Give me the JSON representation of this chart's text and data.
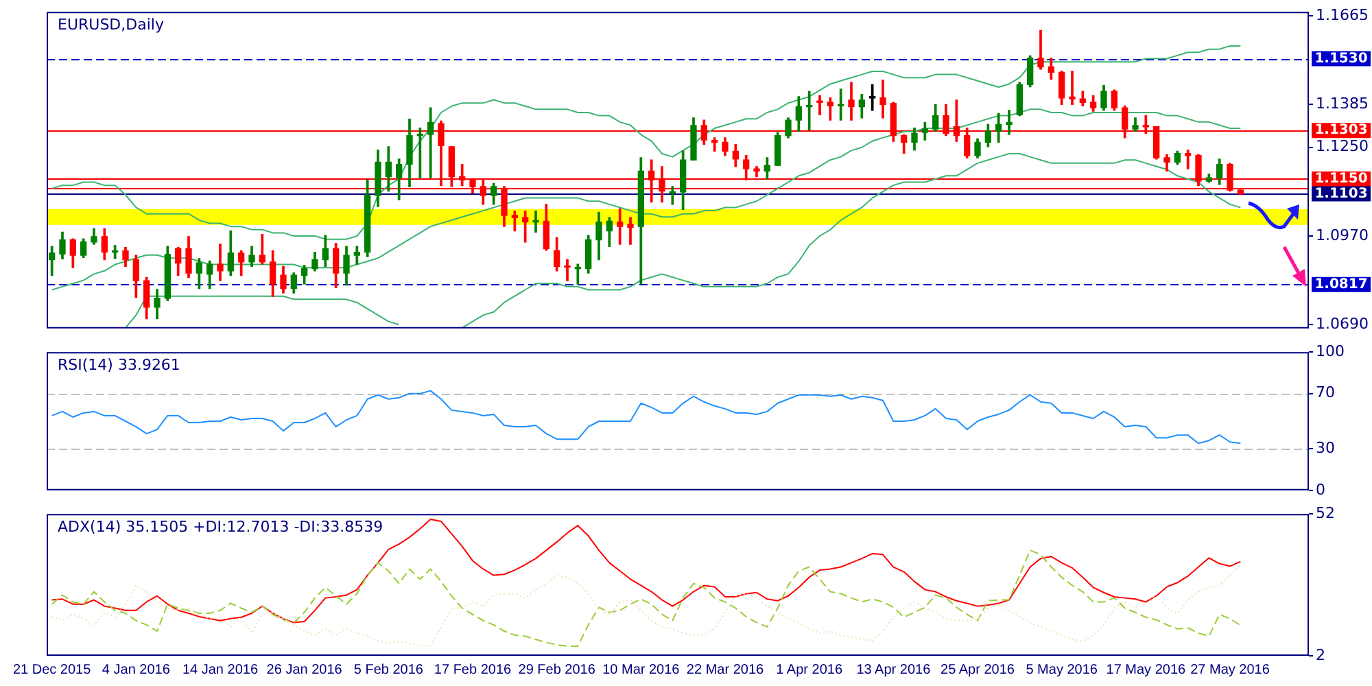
{
  "chart_data": [
    {
      "type": "candlestick",
      "title": "EURUSD,Daily",
      "tick_labels": "y",
      "categories": [
        null,
        null,
        null,
        null,
        null,
        null,
        null,
        null,
        null,
        null,
        null,
        null,
        null,
        null,
        null,
        null,
        null,
        null,
        null,
        null,
        null,
        null,
        null,
        null,
        null,
        null,
        null,
        null,
        null,
        null,
        null,
        null,
        null,
        null,
        null,
        null,
        null,
        null,
        null,
        null,
        null,
        null,
        null,
        null,
        null,
        null,
        null,
        null,
        null,
        null,
        null,
        null,
        null,
        null,
        null,
        null,
        null,
        null,
        null,
        null,
        null,
        null,
        null,
        null,
        null,
        null,
        null,
        null,
        null,
        null,
        null,
        null,
        null,
        null,
        null,
        null,
        null,
        null,
        null,
        null,
        null,
        null,
        null,
        null,
        null,
        null,
        null,
        null,
        null,
        null,
        null,
        null,
        null,
        null,
        null,
        null,
        null,
        null,
        null,
        null,
        null,
        null,
        null,
        null,
        null,
        null,
        null,
        null,
        null,
        null,
        null,
        null,
        null,
        null,
        null,
        null,
        null,
        null,
        null,
        null
      ],
      "ohlc": [
        [
          1.0895,
          1.0937,
          1.0846,
          1.0916
        ],
        [
          1.0913,
          1.0982,
          1.0898,
          1.0958
        ],
        [
          1.0958,
          1.0961,
          1.087,
          1.0909
        ],
        [
          1.0909,
          1.0961,
          1.0902,
          1.0951
        ],
        [
          1.0951,
          1.0993,
          1.0944,
          1.0968
        ],
        [
          1.0968,
          1.0993,
          1.0895,
          1.0919
        ],
        [
          1.0919,
          1.094,
          1.0899,
          1.0923
        ],
        [
          1.0923,
          1.0934,
          1.0874,
          1.0895
        ],
        [
          1.0895,
          1.0909,
          1.0776,
          1.0829
        ],
        [
          1.0829,
          1.0839,
          1.0709,
          1.0745
        ],
        [
          1.0745,
          1.0801,
          1.0709,
          1.0773
        ],
        [
          1.0773,
          1.0937,
          1.0766,
          1.0912
        ],
        [
          1.093,
          1.0934,
          1.0846,
          1.0884
        ],
        [
          1.093,
          1.0968,
          1.0839,
          1.0853
        ],
        [
          1.0853,
          1.0899,
          1.0804,
          1.0885
        ],
        [
          1.0849,
          1.0891,
          1.0804,
          1.0881
        ],
        [
          1.0881,
          1.0944,
          1.0829,
          1.086
        ],
        [
          1.086,
          1.0986,
          1.0846,
          1.0916
        ],
        [
          1.0916,
          1.0923,
          1.0846,
          1.0888
        ],
        [
          1.0888,
          1.0937,
          1.0874,
          1.0909
        ],
        [
          1.0909,
          1.0975,
          1.0881,
          1.0888
        ],
        [
          1.0888,
          1.0923,
          1.0779,
          1.0818
        ],
        [
          1.0846,
          1.0874,
          1.079,
          1.0804
        ],
        [
          1.0804,
          1.0853,
          1.079,
          1.0846
        ],
        [
          1.0846,
          1.0877,
          1.0818,
          1.0867
        ],
        [
          1.0867,
          1.0919,
          1.086,
          1.0895
        ],
        [
          1.0895,
          1.0972,
          1.0874,
          1.093
        ],
        [
          1.093,
          1.0947,
          1.0807,
          1.0853
        ],
        [
          1.0853,
          1.0937,
          1.0815,
          1.0909
        ],
        [
          1.0909,
          1.0937,
          1.0881,
          1.0919
        ],
        [
          1.0919,
          1.1147,
          1.0905,
          1.1098
        ],
        [
          1.1098,
          1.1241,
          1.1063,
          1.1203
        ],
        [
          1.1157,
          1.1252,
          1.1112,
          1.1203
        ],
        [
          1.1154,
          1.1213,
          1.1084,
          1.1196
        ],
        [
          1.1196,
          1.1339,
          1.1126,
          1.1287
        ],
        [
          1.1287,
          1.1311,
          1.1154,
          1.1291
        ],
        [
          1.1291,
          1.1375,
          1.1154,
          1.1329
        ],
        [
          1.1325,
          1.1333,
          1.1129,
          1.1255
        ],
        [
          1.1252,
          1.1252,
          1.1126,
          1.1157
        ],
        [
          1.1157,
          1.1196,
          1.1129,
          1.1147
        ],
        [
          1.1147,
          1.115,
          1.1105,
          1.1126
        ],
        [
          1.1126,
          1.115,
          1.107,
          1.1098
        ],
        [
          1.1098,
          1.1136,
          1.107,
          1.1126
        ],
        [
          1.1119,
          1.1126,
          1.1,
          1.1035
        ],
        [
          1.1035,
          1.1049,
          1.0986,
          1.1028
        ],
        [
          1.1028,
          1.1049,
          1.0951,
          1.1014
        ],
        [
          1.1014,
          1.1049,
          1.0982,
          1.1017
        ],
        [
          1.1017,
          1.107,
          1.0925,
          1.093
        ],
        [
          1.0923,
          1.0965,
          1.086,
          1.0874
        ],
        [
          1.0874,
          1.0895,
          1.0829,
          1.0871
        ],
        [
          1.0867,
          1.0881,
          1.0818,
          1.087
        ],
        [
          1.0867,
          1.0972,
          1.0853,
          1.0958
        ],
        [
          1.0958,
          1.1045,
          1.0895,
          1.1014
        ],
        [
          1.0986,
          1.1028,
          1.0937,
          1.1017
        ],
        [
          1.1014,
          1.1056,
          1.0944,
          1.1
        ],
        [
          1.1007,
          1.1028,
          1.0944,
          1.0997
        ],
        [
          1.1,
          1.1217,
          1.0818,
          1.1175
        ],
        [
          1.1175,
          1.121,
          1.1077,
          1.1147
        ],
        [
          1.1147,
          1.1189,
          1.1077,
          1.1112
        ],
        [
          1.1105,
          1.1126,
          1.107,
          1.1109
        ],
        [
          1.1109,
          1.1238,
          1.1053,
          1.121
        ],
        [
          1.121,
          1.1343,
          1.121,
          1.1319
        ],
        [
          1.1319,
          1.1336,
          1.1259,
          1.1273
        ],
        [
          1.1272,
          1.128,
          1.1238,
          1.1266
        ],
        [
          1.1266,
          1.128,
          1.1224,
          1.1238
        ],
        [
          1.1238,
          1.1259,
          1.1189,
          1.1213
        ],
        [
          1.121,
          1.1224,
          1.1147,
          1.1182
        ],
        [
          1.1182,
          1.1189,
          1.1157,
          1.1175
        ],
        [
          1.1175,
          1.1217,
          1.115,
          1.1193
        ],
        [
          1.1193,
          1.1297,
          1.1193,
          1.1287
        ],
        [
          1.1287,
          1.1343,
          1.128,
          1.1336
        ],
        [
          1.1336,
          1.141,
          1.1301,
          1.1378
        ],
        [
          1.1378,
          1.1427,
          1.1305,
          1.1381
        ],
        [
          1.1395,
          1.1413,
          1.1353,
          1.1392
        ],
        [
          1.1392,
          1.1406,
          1.1336,
          1.1381
        ],
        [
          1.1381,
          1.1434,
          1.1336,
          1.1385
        ],
        [
          1.1399,
          1.1455,
          1.1336,
          1.1378
        ],
        [
          1.1378,
          1.1417,
          1.1343,
          1.1399
        ],
        [
          1.1406,
          1.1448,
          1.1367,
          1.1406
        ],
        [
          1.1406,
          1.1462,
          1.1343,
          1.1385
        ],
        [
          1.1389,
          1.1392,
          1.1269,
          1.1287
        ],
        [
          1.1287,
          1.129,
          1.1231,
          1.1266
        ],
        [
          1.1266,
          1.1311,
          1.1241,
          1.1294
        ],
        [
          1.1297,
          1.1329,
          1.1273,
          1.1308
        ],
        [
          1.1308,
          1.1385,
          1.1301,
          1.135
        ],
        [
          1.135,
          1.1385,
          1.1287,
          1.1294
        ],
        [
          1.1315,
          1.1399,
          1.1269,
          1.1287
        ],
        [
          1.1287,
          1.1311,
          1.1217,
          1.1224
        ],
        [
          1.1224,
          1.1277,
          1.1217,
          1.1266
        ],
        [
          1.1266,
          1.1322,
          1.1252,
          1.1301
        ],
        [
          1.1301,
          1.1357,
          1.1266,
          1.1322
        ],
        [
          1.1322,
          1.1367,
          1.1291,
          1.1329
        ],
        [
          1.1353,
          1.1455,
          1.135,
          1.1448
        ],
        [
          1.1448,
          1.1539,
          1.1441,
          1.1532
        ],
        [
          1.1532,
          1.1619,
          1.1497,
          1.1504
        ],
        [
          1.1504,
          1.1532,
          1.1465,
          1.1487
        ],
        [
          1.1487,
          1.149,
          1.1385,
          1.1406
        ],
        [
          1.1409,
          1.149,
          1.1385,
          1.1403
        ],
        [
          1.1403,
          1.1427,
          1.1381,
          1.1392
        ],
        [
          1.1392,
          1.1413,
          1.1364,
          1.1375
        ],
        [
          1.1375,
          1.1445,
          1.1367,
          1.1427
        ],
        [
          1.1427,
          1.1431,
          1.1367,
          1.1375
        ],
        [
          1.1375,
          1.1381,
          1.128,
          1.1308
        ],
        [
          1.1308,
          1.1343,
          1.1301,
          1.1319
        ],
        [
          1.1319,
          1.135,
          1.1294,
          1.1315
        ],
        [
          1.1315,
          1.1315,
          1.1213,
          1.1217
        ],
        [
          1.1217,
          1.1227,
          1.1175,
          1.1203
        ],
        [
          1.1203,
          1.1238,
          1.1196,
          1.1231
        ],
        [
          1.1231,
          1.1241,
          1.1182,
          1.1224
        ],
        [
          1.1224,
          1.1227,
          1.1129,
          1.1143
        ],
        [
          1.1143,
          1.1165,
          1.114,
          1.1154
        ],
        [
          1.1154,
          1.1213,
          1.1133,
          1.1196
        ],
        [
          1.1196,
          1.1199,
          1.1112,
          1.1115
        ],
        [
          1.1115,
          1.1115,
          1.1101,
          1.1103
        ],
        null,
        null,
        null,
        null,
        null,
        null
      ],
      "colors": [
        "#008000",
        "#008000",
        "#ff0000",
        "#008000",
        "#008000",
        "#ff0000",
        "#008000",
        "#ff0000",
        "#ff0000",
        "#ff0000",
        "#008000",
        "#008000",
        "#ff0000",
        "#ff0000",
        "#008000",
        "#008000",
        "#ff0000",
        "#008000",
        "#ff0000",
        "#008000",
        "#ff0000",
        "#ff0000",
        "#ff0000",
        "#008000",
        "#008000",
        "#008000",
        "#008000",
        "#ff0000",
        "#008000",
        "#008000",
        "#008000",
        "#008000",
        "#008000",
        "#008000",
        "#008000",
        "#008000",
        "#008000",
        "#ff0000",
        "#ff0000",
        "#ff0000",
        "#ff0000",
        "#ff0000",
        "#008000",
        "#ff0000",
        "#ff0000",
        "#ff0000",
        "#008000",
        "#ff0000",
        "#ff0000",
        "#ff0000",
        "#008000",
        "#008000",
        "#008000",
        "#008000",
        "#ff0000",
        "#ff0000",
        "#008000",
        "#ff0000",
        "#ff0000",
        "#008000",
        "#008000",
        "#008000",
        "#ff0000",
        "#ff0000",
        "#ff0000",
        "#ff0000",
        "#ff0000",
        "#ff0000",
        "#008000",
        "#008000",
        "#008000",
        "#008000",
        "#008000",
        "#ff0000",
        "#ff0000",
        "#008000",
        "#ff0000",
        "#008000",
        "#000000",
        "#ff0000",
        "#ff0000",
        "#ff0000",
        "#008000",
        "#008000",
        "#008000",
        "#ff0000",
        "#ff0000",
        "#ff0000",
        "#008000",
        "#008000",
        "#008000",
        "#008000",
        "#008000",
        "#008000",
        "#ff0000",
        "#ff0000",
        "#ff0000",
        "#ff0000",
        "#ff0000",
        "#ff0000",
        "#008000",
        "#ff0000",
        "#ff0000",
        "#008000",
        "#ff0000",
        "#ff0000",
        "#ff0000",
        "#008000",
        "#ff0000",
        "#ff0000",
        "#008000",
        "#008000",
        "#ff0000",
        "#ff0000",
        null,
        null,
        null,
        null,
        null,
        null
      ],
      "series": [
        {
          "type": "line",
          "color": "#3cb371",
          "values": [
            1.112,
            1.113,
            1.113,
            1.114,
            1.114,
            1.113,
            1.113,
            1.11,
            1.106,
            1.104,
            1.104,
            1.104,
            1.104,
            1.104,
            1.102,
            1.101,
            1.101,
            1.1,
            1.1,
            1.099,
            1.099,
            1.098,
            1.098,
            1.097,
            1.097,
            1.097,
            1.096,
            1.096,
            1.096,
            1.097,
            1.101,
            1.11,
            1.113,
            1.115,
            1.122,
            1.127,
            1.131,
            1.136,
            1.138,
            1.139,
            1.139,
            1.139,
            1.14,
            1.139,
            1.139,
            1.138,
            1.137,
            1.137,
            1.137,
            1.137,
            1.136,
            1.136,
            1.135,
            1.135,
            1.133,
            1.132,
            1.129,
            1.127,
            1.123,
            1.122,
            1.124,
            1.126,
            1.129,
            1.131,
            1.132,
            1.133,
            1.134,
            1.134,
            1.136,
            1.137,
            1.139,
            1.14,
            1.141,
            1.143,
            1.145,
            1.146,
            1.147,
            1.148,
            1.149,
            1.149,
            1.148,
            1.147,
            1.147,
            1.147,
            1.148,
            1.148,
            1.148,
            1.147,
            1.146,
            1.145,
            1.144,
            1.145,
            1.147,
            1.151,
            1.152,
            1.152,
            1.152,
            1.152,
            1.152,
            1.152,
            1.152,
            1.152,
            1.152,
            1.152,
            1.153,
            1.153,
            1.153,
            1.154,
            1.155,
            1.155,
            1.156,
            1.156,
            1.157,
            1.157,
            null,
            null,
            null,
            null,
            null,
            null
          ]
        },
        {
          "type": "line",
          "color": "#3cb371",
          "values": [
            1.08,
            1.081,
            1.082,
            1.083,
            1.085,
            1.086,
            1.088,
            1.089,
            1.09,
            1.091,
            1.091,
            1.09,
            1.09,
            1.09,
            1.089,
            1.088,
            1.088,
            1.088,
            1.088,
            1.088,
            1.088,
            1.088,
            1.088,
            1.088,
            1.087,
            1.087,
            1.087,
            1.087,
            1.087,
            1.088,
            1.089,
            1.09,
            1.092,
            1.094,
            1.096,
            1.098,
            1.1,
            1.101,
            1.102,
            1.103,
            1.104,
            1.105,
            1.106,
            1.107,
            1.108,
            1.109,
            1.109,
            1.109,
            1.109,
            1.109,
            1.109,
            1.108,
            1.108,
            1.107,
            1.106,
            1.105,
            1.104,
            1.104,
            1.103,
            1.103,
            1.104,
            1.104,
            1.105,
            1.105,
            1.106,
            1.106,
            1.107,
            1.108,
            1.11,
            1.112,
            1.114,
            1.116,
            1.117,
            1.119,
            1.121,
            1.122,
            1.124,
            1.125,
            1.127,
            1.128,
            1.129,
            1.13,
            1.13,
            1.131,
            1.131,
            1.131,
            1.131,
            1.132,
            1.133,
            1.134,
            1.135,
            1.135,
            1.136,
            1.137,
            1.137,
            1.136,
            1.136,
            1.135,
            1.135,
            1.136,
            1.136,
            1.136,
            1.136,
            1.136,
            1.136,
            1.136,
            1.135,
            1.135,
            1.134,
            1.133,
            1.133,
            1.132,
            1.131,
            1.131,
            null,
            null,
            null,
            null,
            null,
            null
          ]
        },
        {
          "type": "line",
          "color": "#3cb371",
          "values": [
            null,
            null,
            null,
            null,
            null,
            null,
            null,
            1.068,
            1.072,
            1.078,
            1.078,
            1.078,
            1.078,
            1.078,
            1.078,
            1.078,
            1.078,
            1.078,
            1.078,
            1.078,
            1.078,
            1.078,
            1.078,
            1.077,
            1.077,
            1.077,
            1.077,
            1.077,
            1.077,
            1.076,
            1.074,
            1.072,
            1.07,
            1.069,
            null,
            null,
            null,
            null,
            null,
            1.068,
            1.07,
            1.072,
            1.073,
            1.076,
            1.078,
            1.08,
            1.082,
            1.082,
            1.082,
            1.081,
            1.081,
            1.08,
            1.08,
            1.08,
            1.08,
            1.081,
            1.083,
            1.084,
            1.085,
            1.084,
            1.083,
            1.082,
            1.081,
            1.081,
            1.081,
            1.081,
            1.081,
            1.081,
            1.082,
            1.084,
            1.085,
            1.089,
            1.094,
            1.097,
            1.099,
            1.102,
            1.104,
            1.106,
            1.109,
            1.111,
            1.113,
            1.114,
            1.114,
            1.114,
            1.115,
            1.116,
            1.116,
            1.118,
            1.12,
            1.121,
            1.122,
            1.123,
            1.123,
            1.122,
            1.121,
            1.12,
            1.12,
            1.12,
            1.12,
            1.12,
            1.12,
            1.12,
            1.121,
            1.121,
            1.12,
            1.119,
            1.118,
            1.116,
            1.115,
            1.114,
            1.111,
            1.109,
            1.107,
            1.106,
            null,
            null,
            null,
            null,
            null,
            null
          ]
        }
      ],
      "ylim": [
        1.0678,
        1.1678
      ],
      "yticks": [
        {
          "value": 1.069,
          "label": "1.0690"
        },
        {
          "value": 1.097,
          "label": "1.0970"
        },
        {
          "value": 1.125,
          "label": "1.1250"
        },
        1.1385,
        1.1665
      ],
      "ref_lines": [
        {
          "axis": "y",
          "value": 1.153,
          "label": "1.1530",
          "color": "#0000cd",
          "line_style": "dashed"
        },
        {
          "axis": "y",
          "value": 1.1303,
          "label": "1.1303",
          "color": "#ff0000"
        },
        {
          "axis": "y",
          "value": 1.115,
          "label": "1.1150",
          "color": "#ff0000"
        },
        {
          "axis": "y",
          "value": 1.112,
          "color": "#ff0000"
        },
        {
          "axis": "y",
          "value": 1.1103,
          "label": "1.1103",
          "color": "#000080"
        },
        {
          "axis": "y",
          "value": 1.0817,
          "label": "1.0817",
          "color": "#0000cd",
          "line_style": "dashed"
        }
      ],
      "bands": [
        {
          "axis": "y",
          "from": 1.1005,
          "to": 1.1055,
          "color": "#ffff00"
        }
      ]
    },
    {
      "type": "line",
      "title": "RSI(14) 33.9261",
      "tick_labels": "y",
      "categories": [
        null,
        null,
        null,
        null,
        null,
        null,
        null,
        null,
        null,
        null,
        null,
        null,
        null,
        null,
        null,
        null,
        null,
        null,
        null,
        null,
        null,
        null,
        null,
        null,
        null,
        null,
        null,
        null,
        null,
        null,
        null,
        null,
        null,
        null,
        null,
        null,
        null,
        null,
        null,
        null,
        null,
        null,
        null,
        null,
        null,
        null,
        null,
        null,
        null,
        null,
        null,
        null,
        null,
        null,
        null,
        null,
        null,
        null,
        null,
        null,
        null,
        null,
        null,
        null,
        null,
        null,
        null,
        null,
        null,
        null,
        null,
        null,
        null,
        null,
        null,
        null,
        null,
        null,
        null,
        null,
        null,
        null,
        null,
        null,
        null,
        null,
        null,
        null,
        null,
        null,
        null,
        null,
        null,
        null,
        null,
        null,
        null,
        null,
        null,
        null,
        null,
        null,
        null,
        null,
        null,
        null,
        null,
        null,
        null,
        null,
        null,
        null,
        null,
        null,
        null,
        null,
        null,
        null,
        null,
        null
      ],
      "series": [
        {
          "color": "#1e90ff",
          "values": [
            54,
            57,
            53,
            56,
            57,
            54,
            54,
            50,
            46,
            41,
            44,
            54,
            54,
            49,
            49,
            50,
            50,
            53,
            51,
            52,
            52,
            50,
            43,
            49,
            49,
            52,
            56,
            46,
            51,
            54,
            66,
            69,
            66,
            67,
            70,
            70,
            72,
            66,
            58,
            57,
            56,
            54,
            55,
            47,
            46,
            46,
            47,
            41,
            37,
            37,
            37,
            46,
            50,
            50,
            50,
            50,
            63,
            60,
            56,
            56,
            63,
            68,
            64,
            61,
            59,
            56,
            56,
            55,
            57,
            63,
            66,
            69,
            69,
            69,
            68,
            69,
            66,
            68,
            67,
            65,
            50,
            50,
            51,
            54,
            59,
            52,
            51,
            44,
            50,
            53,
            55,
            58,
            64,
            69,
            64,
            63,
            56,
            56,
            54,
            52,
            57,
            53,
            46,
            47,
            46,
            38,
            38,
            40,
            40,
            34,
            36,
            40,
            35,
            34,
            null,
            null,
            null,
            null,
            null,
            null
          ]
        }
      ],
      "ylim": [
        0,
        100
      ],
      "yticks": [
        0,
        30,
        70,
        100
      ],
      "ref_lines": [
        {
          "axis": "y",
          "value": 70,
          "color": "#c0c0c0",
          "line_style": "dashed"
        },
        {
          "axis": "y",
          "value": 30,
          "color": "#c0c0c0",
          "line_style": "dashed"
        }
      ]
    },
    {
      "type": "line",
      "title": "ADX(14) 35.1505 +DI:12.7013 -DI:33.8539",
      "categories": [
        "21 Dec 2015",
        null,
        null,
        null,
        null,
        null,
        null,
        null,
        "4 Jan 2016",
        null,
        null,
        null,
        null,
        null,
        null,
        null,
        "14 Jan 2016",
        null,
        null,
        null,
        null,
        null,
        null,
        null,
        "26 Jan 2016",
        null,
        null,
        null,
        null,
        null,
        null,
        null,
        "5 Feb 2016",
        null,
        null,
        null,
        null,
        null,
        null,
        null,
        "17 Feb 2016",
        null,
        null,
        null,
        null,
        null,
        null,
        null,
        "29 Feb 2016",
        null,
        null,
        null,
        null,
        null,
        null,
        null,
        "10 Mar 2016",
        null,
        null,
        null,
        null,
        null,
        null,
        null,
        "22 Mar 2016",
        null,
        null,
        null,
        null,
        null,
        null,
        null,
        "1 Apr 2016",
        null,
        null,
        null,
        null,
        null,
        null,
        null,
        "13 Apr 2016",
        null,
        null,
        null,
        null,
        null,
        null,
        null,
        "25 Apr 2016",
        null,
        null,
        null,
        null,
        null,
        null,
        null,
        "5 May 2016",
        null,
        null,
        null,
        null,
        null,
        null,
        null,
        "17 May 2016",
        null,
        null,
        null,
        null,
        null,
        null,
        null,
        "27 May 2016",
        null,
        null,
        null,
        null,
        null,
        null,
        null
      ],
      "series": [
        {
          "color": "#f5deb3",
          "line_style": "dotted",
          "values": [
            15.8,
            14.4,
            16.6,
            15.1,
            12.9,
            17.3,
            15.8,
            20.2,
            26.8,
            24.6,
            21,
            18.8,
            18,
            18.8,
            16.6,
            15.1,
            15.8,
            12.2,
            15.1,
            10,
            16.6,
            17.3,
            15.1,
            12.9,
            10.7,
            9.3,
            11.5,
            9.3,
            11.5,
            10,
            8.9,
            7.4,
            6.4,
            7.1,
            6.4,
            5.6,
            5.6,
            12.2,
            18.8,
            18.8,
            21,
            19.5,
            23.4,
            23.9,
            23.9,
            22.4,
            25.3,
            27.5,
            30.4,
            29.7,
            27.5,
            23.9,
            18.8,
            16.6,
            21,
            21.7,
            18,
            14.4,
            12.2,
            11.5,
            10,
            9.3,
            9.3,
            11.5,
            17.3,
            23.1,
            23.9,
            22.4,
            19.5,
            17.3,
            15.1,
            13.7,
            11.5,
            10,
            10.7,
            9.3,
            8.6,
            7.8,
            7.4,
            10.7,
            15.8,
            18.8,
            21,
            18.8,
            17.3,
            15.1,
            14.4,
            14.4,
            14.7,
            18.8,
            20.2,
            18,
            15.8,
            13.7,
            12.2,
            10.7,
            9.3,
            7.8,
            7.1,
            9.3,
            12.9,
            18.8,
            21,
            18.8,
            20.2,
            23.1,
            18.8,
            17,
            21.7,
            24.6,
            26.1,
            26.8,
            30.4,
            33.9,
            null,
            null,
            null,
            null,
            null,
            null
          ]
        },
        {
          "color": "#9acd32",
          "line_style": "dashed",
          "values": [
            20.2,
            23.4,
            21,
            20.2,
            24.6,
            21,
            18,
            17,
            14.4,
            12.9,
            10.7,
            20.2,
            18.8,
            18,
            17,
            17,
            18,
            20.5,
            18.8,
            17.3,
            19.5,
            16.6,
            14.7,
            13.7,
            17.3,
            22.4,
            26.1,
            23.1,
            20.2,
            23.9,
            30.4,
            34.8,
            31.9,
            27.5,
            32.6,
            29,
            32.6,
            28.2,
            23.1,
            18.8,
            16.6,
            14.4,
            12.9,
            10.7,
            9.3,
            8.9,
            7.8,
            6.7,
            5.9,
            5.4,
            5.4,
            12.9,
            19.1,
            17.3,
            18,
            20.2,
            22,
            20.2,
            16.6,
            14.4,
            22.4,
            27.5,
            26.1,
            22.4,
            21,
            18.8,
            15.8,
            13.7,
            12.2,
            18.8,
            26.8,
            31.9,
            33.3,
            29,
            24.6,
            23.9,
            22.4,
            21,
            22,
            21,
            19.1,
            15.6,
            17.3,
            19.1,
            23.4,
            22.4,
            19.1,
            16.6,
            14.4,
            21.4,
            21.7,
            21.7,
            30.4,
            39.2,
            37.7,
            33.3,
            29.7,
            26.8,
            24.6,
            21,
            21,
            22.4,
            18.8,
            17.3,
            15.6,
            14.7,
            12.9,
            11.5,
            11.8,
            10,
            8.9,
            16.6,
            15.1,
            12.7,
            null,
            null,
            null,
            null,
            null,
            null
          ]
        },
        {
          "color": "#ff0000",
          "values": [
            21.7,
            22,
            20.2,
            20.2,
            21.7,
            19.5,
            18.8,
            18,
            18,
            21,
            23.1,
            20.2,
            18,
            17,
            15.8,
            15.1,
            14.4,
            15.1,
            15.6,
            17,
            19.5,
            17,
            15.1,
            13.7,
            14.1,
            18,
            22.4,
            22.8,
            23.4,
            25.3,
            30.4,
            34.8,
            39.5,
            41.4,
            43.8,
            46.8,
            50.1,
            49.4,
            45,
            40.6,
            35.5,
            32.6,
            30.4,
            30.7,
            32.2,
            34.1,
            36.3,
            39.2,
            42.1,
            45.3,
            47.9,
            44.3,
            39.2,
            34.8,
            31.9,
            29,
            26.8,
            24.6,
            21.7,
            19.5,
            21.7,
            24.6,
            26.8,
            26.3,
            22.8,
            22.8,
            23.9,
            24.3,
            22,
            21.4,
            23.1,
            26.1,
            29.7,
            32.2,
            32.6,
            33.3,
            34.8,
            36.3,
            38,
            37.7,
            33.3,
            31.6,
            28.2,
            25.3,
            24.6,
            22.8,
            21.4,
            20.5,
            19.5,
            19.9,
            20.5,
            21.7,
            27.5,
            33.3,
            36.3,
            37,
            34.8,
            33,
            29.7,
            26.1,
            24.3,
            22.8,
            22.4,
            22,
            21,
            23.1,
            26.3,
            27.8,
            30.1,
            33.3,
            36.5,
            34.5,
            33.6,
            35.2,
            null,
            null,
            null,
            null,
            null,
            null
          ]
        }
      ],
      "ylim": [
        2,
        52
      ],
      "yticks": [
        2,
        52
      ]
    }
  ]
}
